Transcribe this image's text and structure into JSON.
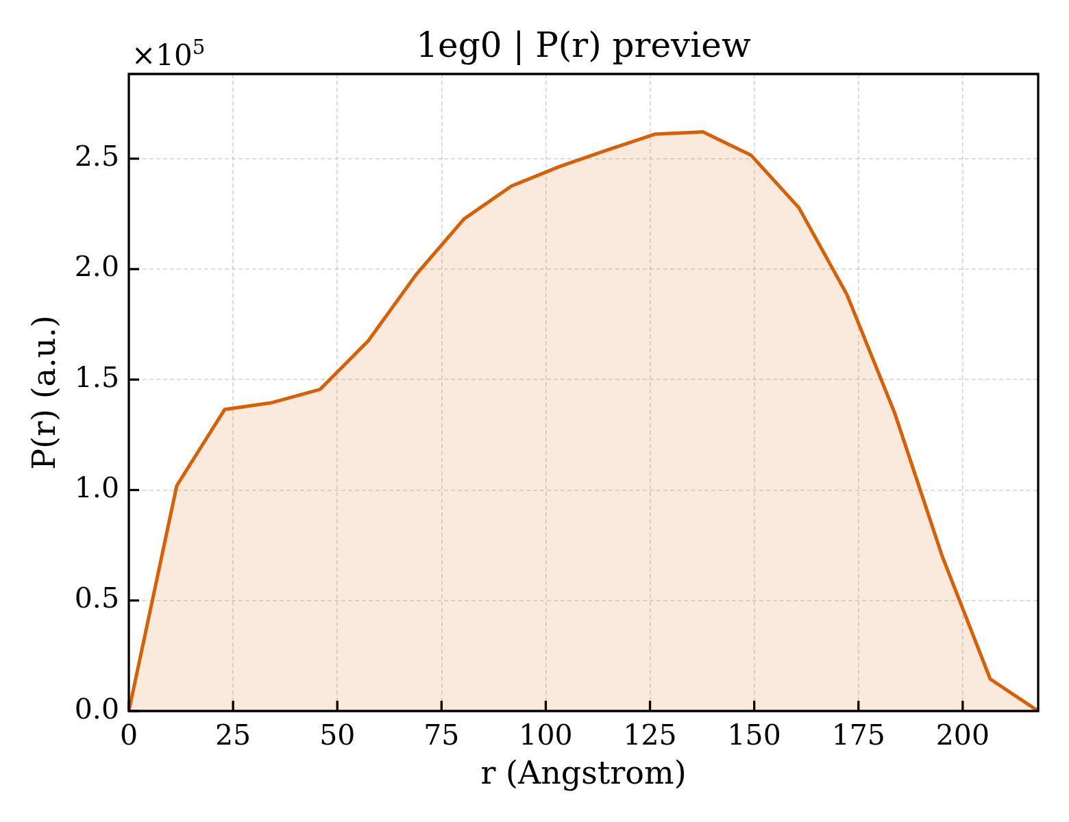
{
  "chart_data": {
    "type": "area",
    "title": "1eg0 | P(r) preview",
    "xlabel": "r (Angstrom)",
    "ylabel": "P(r) (a.u.)",
    "annotations": [
      "×10$^{5}$"
    ],
    "x": [
      0,
      11.5,
      23.0,
      34.4,
      45.9,
      57.4,
      68.9,
      80.4,
      91.8,
      103.3,
      114.8,
      126.3,
      137.7,
      149.2,
      160.7,
      172.2,
      183.7,
      195.1,
      206.6,
      218.1
    ],
    "series": [
      {
        "color": "#d95f02",
        "values": [
          0,
          1.02,
          1.365,
          1.396,
          1.456,
          1.675,
          1.975,
          2.227,
          2.376,
          2.464,
          2.539,
          2.611,
          2.621,
          2.516,
          2.278,
          1.886,
          1.348,
          0.7,
          0.145,
          0
        ]
      }
    ],
    "xlim": [
      0,
      218.1
    ],
    "ylim": [
      0,
      2.883
    ],
    "xticks": [
      0,
      25,
      50,
      75,
      100,
      125,
      150,
      175,
      200
    ],
    "yticks": [
      {
        "value": 0,
        "label": "0.0"
      },
      0.5,
      {
        "value": 1,
        "label": "1.0"
      },
      1.5,
      {
        "value": 2,
        "label": "2.0"
      },
      2.5
    ],
    "grid": true
  }
}
